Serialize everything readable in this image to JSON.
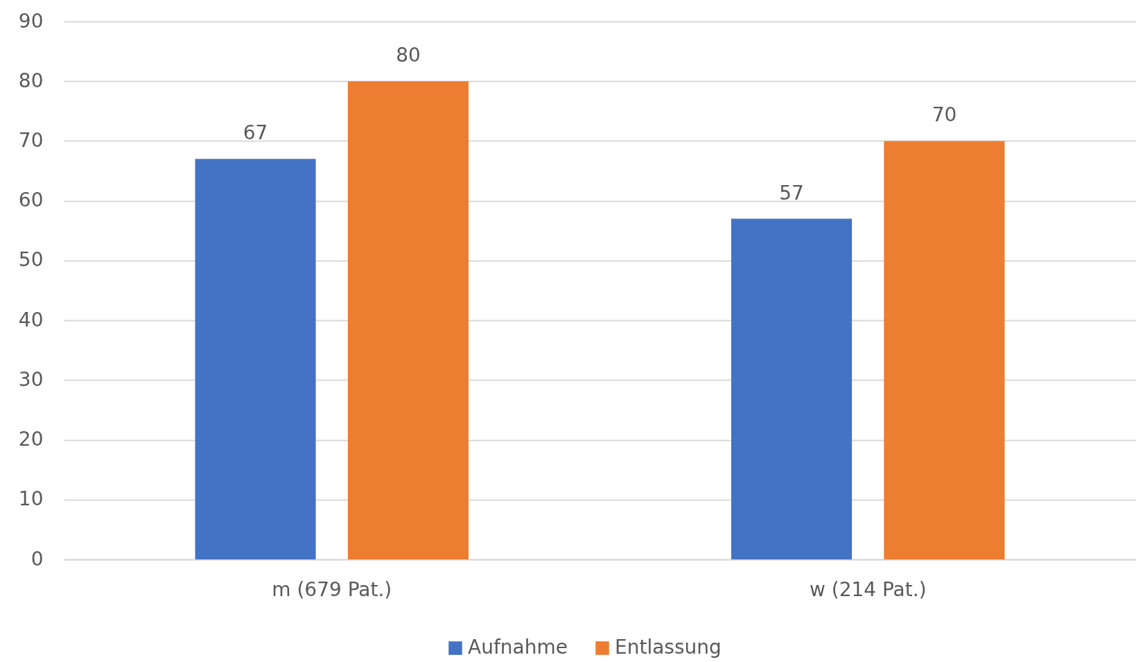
{
  "chart_data": {
    "type": "bar",
    "categories": [
      "m (679 Pat.)",
      "w (214 Pat.)"
    ],
    "series": [
      {
        "name": "Aufnahme",
        "color": "#4472c4",
        "values": [
          67,
          57
        ]
      },
      {
        "name": "Entlassung",
        "color": "#ed7d31",
        "values": [
          80,
          70
        ]
      }
    ],
    "ylim": [
      0,
      90
    ],
    "yticks": [
      0,
      10,
      20,
      30,
      40,
      50,
      60,
      70,
      80,
      90
    ],
    "grid": "y",
    "legend": "bottom",
    "data_labels": true
  }
}
